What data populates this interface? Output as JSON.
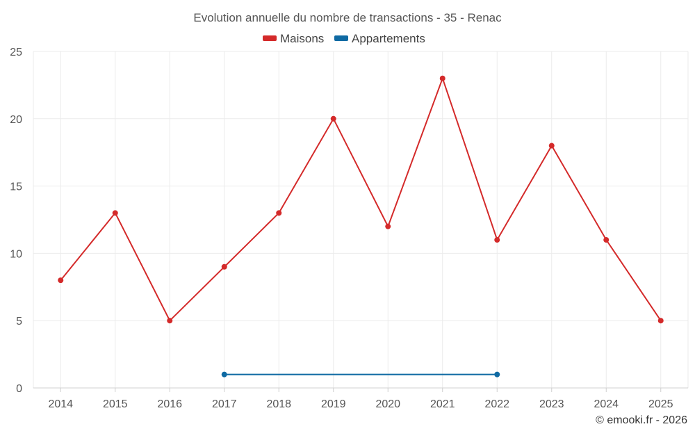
{
  "chart_data": {
    "type": "line",
    "title": "Evolution annuelle du nombre de transactions - 35 - Renac",
    "categories": [
      "2014",
      "2015",
      "2016",
      "2017",
      "2018",
      "2019",
      "2020",
      "2021",
      "2022",
      "2023",
      "2024",
      "2025"
    ],
    "series": [
      {
        "name": "Maisons",
        "color": "#d42a2a",
        "values": [
          8,
          13,
          5,
          9,
          13,
          20,
          12,
          23,
          11,
          18,
          11,
          5
        ]
      },
      {
        "name": "Appartements",
        "color": "#0f6aa3",
        "values": [
          null,
          null,
          null,
          1,
          null,
          null,
          null,
          null,
          1,
          null,
          null,
          null
        ]
      }
    ],
    "xlabel": "",
    "ylabel": "",
    "ylim": [
      0,
      25
    ],
    "yticks": [
      "0",
      "5",
      "10",
      "15",
      "20",
      "25"
    ],
    "grid": true,
    "legend": "top-center"
  },
  "credit": "© emooki.fr - 2026"
}
